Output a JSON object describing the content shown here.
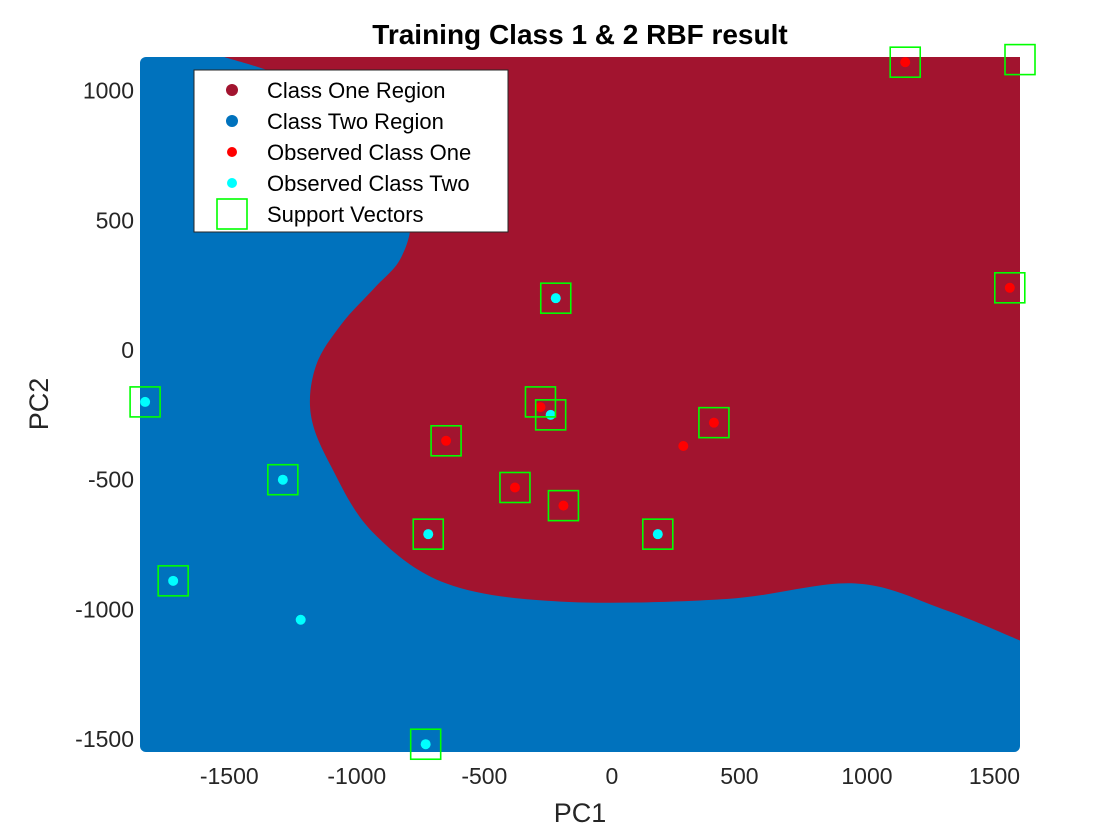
{
  "chart_data": {
    "type": "scatter",
    "title": "Training Class 1 & 2 RBF result",
    "xlabel": "PC1",
    "ylabel": "PC2",
    "xlim": [
      -1850,
      1600
    ],
    "ylim": [
      -1550,
      1130
    ],
    "x_ticks": [
      -1500,
      -1000,
      -500,
      0,
      500,
      1000,
      1500
    ],
    "x_tick_labels": [
      "-1500",
      "-1000",
      "-500",
      "0",
      "500",
      "1000",
      "1500"
    ],
    "y_ticks": [
      -1500,
      -1000,
      -500,
      0,
      500,
      1000
    ],
    "y_tick_labels": [
      "-1500",
      "-1000",
      "-500",
      "0",
      "500",
      "1000"
    ],
    "grid": false,
    "legend_position": "top-left",
    "legend": [
      {
        "label": "Class One Region",
        "marker": "dot",
        "color": "#a2142f"
      },
      {
        "label": "Class Two Region",
        "marker": "dot",
        "color": "#0072bd"
      },
      {
        "label": "Observed Class One",
        "marker": "small-dot",
        "color": "#ff0000"
      },
      {
        "label": "Observed Class Two",
        "marker": "small-dot",
        "color": "#00ffff"
      },
      {
        "label": "Support Vectors",
        "marker": "square",
        "color": "#00ff00"
      }
    ],
    "region_boundary": [
      [
        -1520,
        1130
      ],
      [
        -1300,
        1060
      ],
      [
        -1100,
        950
      ],
      [
        -960,
        820
      ],
      [
        -860,
        650
      ],
      [
        -790,
        500
      ],
      [
        -830,
        350
      ],
      [
        -930,
        240
      ],
      [
        -1060,
        100
      ],
      [
        -1160,
        -60
      ],
      [
        -1180,
        -250
      ],
      [
        -1100,
        -450
      ],
      [
        -940,
        -700
      ],
      [
        -650,
        -900
      ],
      [
        -200,
        -970
      ],
      [
        450,
        -960
      ],
      [
        950,
        -900
      ],
      [
        1300,
        -1000
      ],
      [
        1600,
        -1120
      ]
    ],
    "series": [
      {
        "name": "Observed Class One",
        "color": "#ff0000",
        "points": [
          [
            1150,
            1110
          ],
          [
            1560,
            240
          ],
          [
            -650,
            -350
          ],
          [
            -380,
            -530
          ],
          [
            -190,
            -600
          ],
          [
            280,
            -370
          ],
          [
            400,
            -280
          ],
          [
            -280,
            -220
          ]
        ]
      },
      {
        "name": "Observed Class Two",
        "color": "#00ffff",
        "points": [
          [
            -1830,
            -200
          ],
          [
            -1720,
            -890
          ],
          [
            -1290,
            -500
          ],
          [
            -1220,
            -1040
          ],
          [
            -720,
            -710
          ],
          [
            -730,
            -1520
          ],
          [
            -220,
            200
          ],
          [
            -240,
            -250
          ],
          [
            180,
            -710
          ]
        ]
      },
      {
        "name": "Support Vectors",
        "color": "#00ff00",
        "points": [
          [
            1150,
            1110
          ],
          [
            1600,
            1120
          ],
          [
            1560,
            240
          ],
          [
            -220,
            200
          ],
          [
            -1830,
            -200
          ],
          [
            -280,
            -200
          ],
          [
            -240,
            -250
          ],
          [
            -650,
            -350
          ],
          [
            400,
            -280
          ],
          [
            -1290,
            -500
          ],
          [
            -380,
            -530
          ],
          [
            -190,
            -600
          ],
          [
            -720,
            -710
          ],
          [
            180,
            -710
          ],
          [
            -1720,
            -890
          ],
          [
            -730,
            -1520
          ]
        ]
      }
    ]
  },
  "colors": {
    "class_one_region": "#a2142f",
    "class_two_region": "#0072bd",
    "observed_one": "#ff0000",
    "observed_two": "#00ffff",
    "support_vector": "#00ff00"
  }
}
